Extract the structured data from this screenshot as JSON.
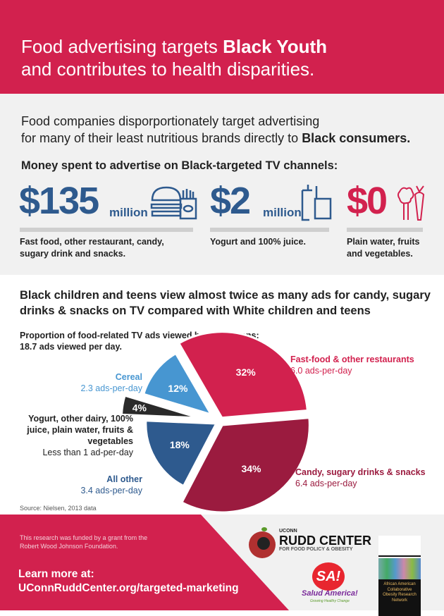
{
  "header": {
    "line1_pre": "Food advertising targets ",
    "line1_bold": "Black Youth",
    "line2": "and contributes to health disparities."
  },
  "intro": {
    "line1": "Food companies disporportionately target advertising",
    "line2_pre": "for many of their least nutritious brands directly to ",
    "line2_bold": "Black consumers."
  },
  "spend": {
    "heading": "Money spent to advertise on Black-targeted TV channels:",
    "items": [
      {
        "amount": "$135",
        "unit": "million",
        "caption1": "Fast food, other restaurant, candy,",
        "caption2": "sugary drink and snacks.",
        "icon": "burger-fries-icon"
      },
      {
        "amount": "$2",
        "unit": "million",
        "caption1": "Yogurt and 100% juice.",
        "caption2": "",
        "icon": "drink-cups-icon"
      },
      {
        "amount": "$0",
        "unit": "",
        "caption1": "Plain water, fruits",
        "caption2": "and vegetables.",
        "icon": "vegetables-icon"
      }
    ]
  },
  "section2": {
    "heading1": "Black children and teens view almost twice as many ads for candy, sugary",
    "heading2": "drinks & snacks on TV compared with White children and teens"
  },
  "chart_data": {
    "type": "pie",
    "title": "Proportion of food-related TV ads viewed by Black teens:",
    "subtitle": "18.7 ads viewed per day.",
    "slices": [
      {
        "name": "Fast-food & other restaurants",
        "value": 32,
        "label": "32%",
        "detail": "6.0 ads-per-day",
        "color": "#d2214e"
      },
      {
        "name": "Candy, sugary drinks & snacks",
        "value": 34,
        "label": "34%",
        "detail": "6.4 ads-per-day",
        "color": "#9b1b3f"
      },
      {
        "name": "All other",
        "value": 18,
        "label": "18%",
        "detail": "3.4 ads-per-day",
        "color": "#2e5a8e"
      },
      {
        "name": "Yogurt, other dairy, 100% juice, plain water, fruits & vegetables",
        "value": 4,
        "label": "4%",
        "detail": "Less than 1 ad-per-day",
        "color": "#2a2a2a"
      },
      {
        "name": "Cereal",
        "value": 12,
        "label": "12%",
        "detail": "2.3 ads-per-day",
        "color": "#4796d1"
      }
    ],
    "yogurt_lines": [
      "Yogurt, other dairy, 100%",
      "juice, plain water, fruits &",
      "vegetables"
    ]
  },
  "source": "Source: Nielsen, 2013 data",
  "footer": {
    "funding1": "This research was funded by a grant from the",
    "funding2": "Robert Wood Johnson Foundation.",
    "learn": "Learn more at:",
    "url": "UConnRuddCenter.org/targeted-marketing",
    "rudd_small": "UCONN",
    "rudd_big": "RUDD CENTER",
    "rudd_sub": "FOR FOOD POLICY & OBESITY",
    "sa": "SA!",
    "sa_name": "Salud America!",
    "sa_tag": "Growing Healthy Change",
    "aacorn": [
      "African American",
      "Collaborative",
      "Obesity Research",
      "Network"
    ]
  }
}
